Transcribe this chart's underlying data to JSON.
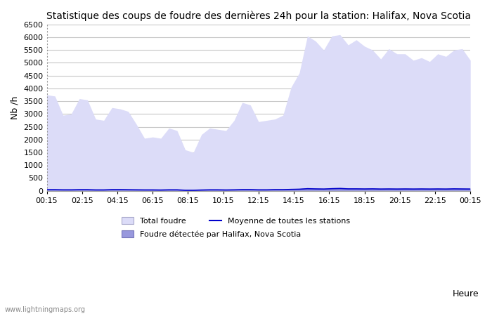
{
  "title": "Statistique des coups de foudre des dernières 24h pour la station: Halifax, Nova Scotia",
  "ylabel": "Nb /h",
  "xlabel": "Heure",
  "watermark": "www.lightningmaps.org",
  "ylim": [
    0,
    6500
  ],
  "yticks": [
    0,
    500,
    1000,
    1500,
    2000,
    2500,
    3000,
    3500,
    4000,
    4500,
    5000,
    5500,
    6000,
    6500
  ],
  "x_labels": [
    "00:15",
    "02:15",
    "04:15",
    "06:15",
    "08:15",
    "10:15",
    "12:15",
    "14:15",
    "16:15",
    "18:15",
    "20:15",
    "22:15",
    "00:15"
  ],
  "background_color": "#ffffff",
  "grid_color": "#c8c8c8",
  "fill_total_color": "#dcdcf8",
  "fill_detected_color": "#9898dd",
  "line_mean_color": "#0000cc",
  "total_foudre": [
    3750,
    3700,
    2950,
    3000,
    3600,
    3550,
    2800,
    2750,
    3250,
    3200,
    3100,
    2600,
    2050,
    2100,
    2050,
    2450,
    2350,
    1600,
    1500,
    2200,
    2450,
    2400,
    2350,
    2750,
    3450,
    3350,
    2700,
    2750,
    2800,
    2950,
    4050,
    4600,
    6050,
    5850,
    5500,
    6050,
    6100,
    5700,
    5900,
    5650,
    5500,
    5150,
    5550,
    5350,
    5350,
    5100,
    5200,
    5050,
    5350,
    5250,
    5500,
    5550,
    5100
  ],
  "detected_foudre": [
    60,
    60,
    55,
    55,
    60,
    60,
    50,
    50,
    65,
    65,
    60,
    55,
    50,
    50,
    45,
    55,
    55,
    30,
    30,
    45,
    55,
    55,
    50,
    55,
    65,
    65,
    55,
    55,
    65,
    65,
    80,
    90,
    120,
    110,
    100,
    120,
    130,
    110,
    110,
    105,
    110,
    100,
    105,
    100,
    105,
    100,
    105,
    100,
    105,
    100,
    110,
    105,
    100
  ],
  "mean_stations": [
    40,
    40,
    35,
    35,
    40,
    40,
    32,
    32,
    42,
    42,
    38,
    35,
    32,
    32,
    28,
    35,
    35,
    18,
    18,
    28,
    35,
    35,
    30,
    35,
    42,
    42,
    35,
    35,
    42,
    42,
    52,
    58,
    78,
    70,
    65,
    78,
    85,
    72,
    72,
    68,
    72,
    65,
    68,
    65,
    68,
    65,
    68,
    65,
    68,
    65,
    72,
    68,
    65
  ],
  "legend_total": "Total foudre",
  "legend_mean": "Moyenne de toutes les stations",
  "legend_detected": "Foudre détectée par Halifax, Nova Scotia"
}
